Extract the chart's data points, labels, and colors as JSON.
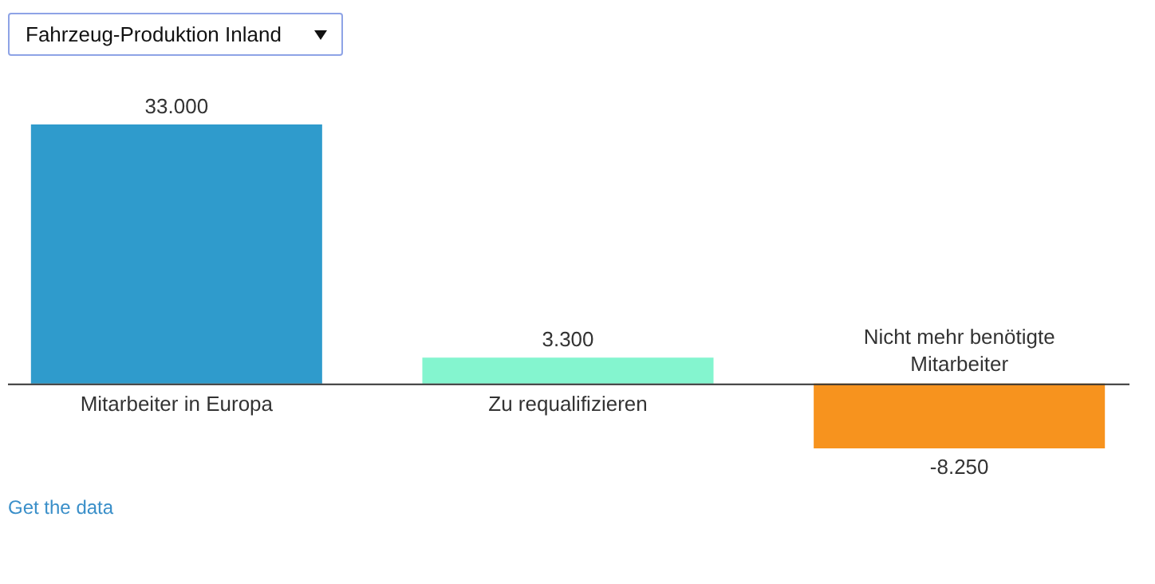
{
  "chart_data": {
    "type": "bar",
    "title": "Fahrzeug-Produktion Inland",
    "categories": [
      "Mitarbeiter in Europa",
      "Zu requalifizieren",
      "Nicht mehr benötigte Mitarbeiter"
    ],
    "values": [
      33000,
      3300,
      -8250
    ],
    "colors": [
      "#2f9bcc",
      "#84f5cf",
      "#f7931e"
    ],
    "value_labels": [
      "33.000",
      "3.300",
      "-8.250"
    ],
    "legend": false,
    "annotations": [
      "Get the data"
    ]
  }
}
